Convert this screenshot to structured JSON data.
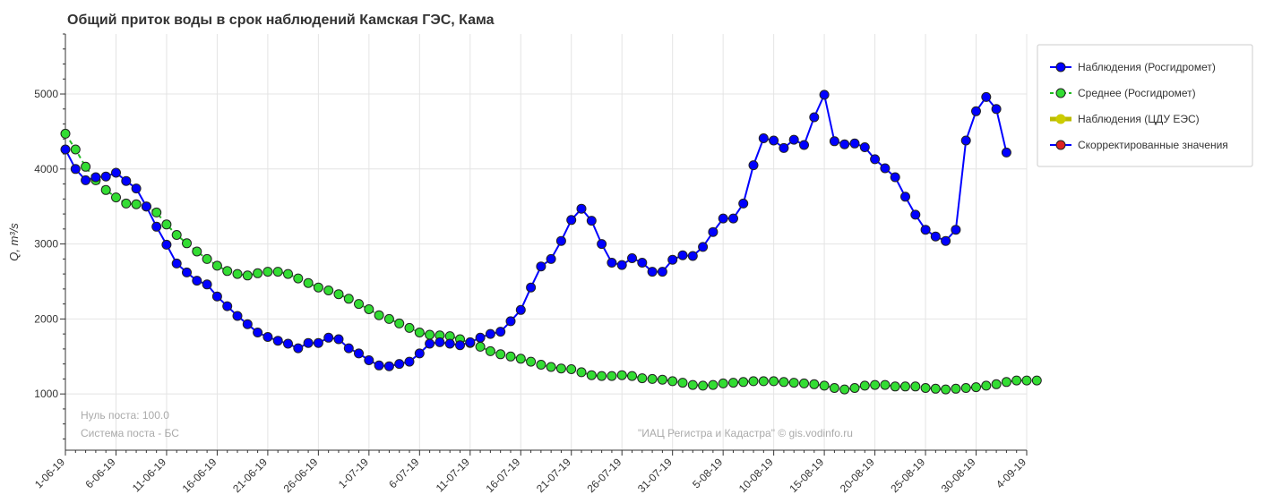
{
  "chart_data": {
    "type": "line",
    "title": "Общий приток воды в срок наблюдений Камская ГЭС,  Кама",
    "ylabel": "Q, m³/s",
    "xlabel": "",
    "ylim": [
      250,
      5800
    ],
    "x_range": [
      "2019-06-01",
      "2019-09-04"
    ],
    "y_ticks": [
      1000,
      2000,
      3000,
      4000,
      5000
    ],
    "x_tick_labels": [
      "1-06-19",
      "6-06-19",
      "11-06-19",
      "16-06-19",
      "21-06-19",
      "26-06-19",
      "1-07-19",
      "6-07-19",
      "11-07-19",
      "16-07-19",
      "21-07-19",
      "26-07-19",
      "31-07-19",
      "5-08-19",
      "10-08-19",
      "15-08-19",
      "20-08-19",
      "25-08-19",
      "30-08-19",
      "4-09-19"
    ],
    "grid": true,
    "legend_position": "right",
    "series": [
      {
        "name": "Наблюдения (Росгидромет)",
        "color": "#0000ff",
        "marker_fill": "#0000ff",
        "start_date": "2019-06-01",
        "values": [
          4260,
          4000,
          3850,
          3890,
          3900,
          3950,
          3840,
          3740,
          3500,
          3230,
          2990,
          2740,
          2620,
          2510,
          2460,
          2300,
          2170,
          2040,
          1930,
          1820,
          1760,
          1710,
          1670,
          1610,
          1680,
          1680,
          1750,
          1730,
          1610,
          1540,
          1450,
          1380,
          1370,
          1400,
          1430,
          1540,
          1670,
          1690,
          1670,
          1650,
          1690,
          1750,
          1800,
          1830,
          1970,
          2120,
          2420,
          2700,
          2800,
          3040,
          3320,
          3470,
          3310,
          3000,
          2750,
          2720,
          2810,
          2750,
          2630,
          2630,
          2790,
          2850,
          2840,
          2960,
          3160,
          3340,
          3340,
          3540,
          4050,
          4410,
          4380,
          4280,
          4390,
          4320,
          4690,
          4990,
          4370,
          4330,
          4340,
          4290,
          4130,
          4010,
          3890,
          3630,
          3390,
          3190,
          3100,
          3040,
          3190,
          4380,
          4770,
          4960,
          4800,
          4220
        ]
      },
      {
        "name": "Среднее (Росгидромет)",
        "color": "#22bb22",
        "marker_fill": "#33dd33",
        "start_date": "2019-06-01",
        "values": [
          4470,
          4260,
          4030,
          3850,
          3720,
          3620,
          3540,
          3530,
          3500,
          3420,
          3260,
          3120,
          3010,
          2900,
          2800,
          2710,
          2640,
          2600,
          2580,
          2610,
          2630,
          2630,
          2600,
          2540,
          2480,
          2420,
          2380,
          2330,
          2270,
          2200,
          2130,
          2050,
          2000,
          1940,
          1880,
          1820,
          1790,
          1780,
          1770,
          1730,
          1680,
          1630,
          1570,
          1530,
          1500,
          1470,
          1430,
          1390,
          1360,
          1340,
          1330,
          1290,
          1250,
          1240,
          1240,
          1250,
          1240,
          1210,
          1200,
          1190,
          1170,
          1150,
          1120,
          1110,
          1120,
          1140,
          1150,
          1160,
          1170,
          1170,
          1170,
          1160,
          1150,
          1140,
          1130,
          1110,
          1080,
          1060,
          1080,
          1110,
          1120,
          1120,
          1100,
          1100,
          1100,
          1080,
          1070,
          1060,
          1070,
          1080,
          1090,
          1110,
          1130,
          1160,
          1180,
          1180,
          1180
        ]
      },
      {
        "name": "Наблюдения (ЦДУ ЕЭС)",
        "color": "#bbbb00",
        "marker_fill": "#cccc00",
        "values": []
      },
      {
        "name": "Скорректированные значения",
        "color": "#0000ff",
        "marker_fill": "#dd2222",
        "values": []
      }
    ],
    "annotations": {
      "null_post": "Нуль поста: 100.0",
      "system_post": "Система поста - БС",
      "credit": "\"ИАЦ Регистра и Кадастра\" © gis.vodinfo.ru"
    }
  }
}
